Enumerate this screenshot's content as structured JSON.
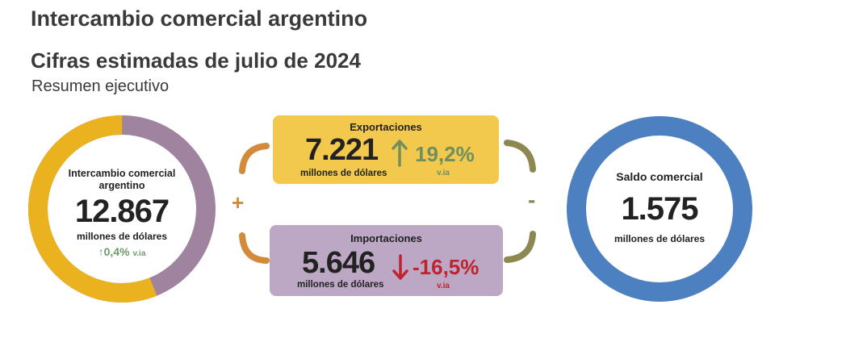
{
  "header": {
    "title": "Intercambio comercial argentino",
    "subtitle_main": "Cifras estimadas de julio de 2024",
    "subtitle_small": "Resumen ejecutivo"
  },
  "total": {
    "label": "Intercambio comercial argentino",
    "value": "12.867",
    "unit": "millones de dólares",
    "change": "0,4%",
    "change_suffix": "v.ia",
    "ring_split_fraction_exports": 0.561
  },
  "exports": {
    "label": "Exportaciones",
    "value": "7.221",
    "unit": "millones de dólares",
    "change": "19,2%",
    "change_suffix": "v.ia",
    "direction": "up"
  },
  "imports": {
    "label": "Importaciones",
    "value": "5.646",
    "unit": "millones de dólares",
    "change": "-16,5%",
    "change_suffix": "v.ia",
    "direction": "down"
  },
  "balance": {
    "label": "Saldo comercial",
    "value": "1.575",
    "unit": "millones de dólares"
  },
  "operators": {
    "plus": "+",
    "minus": "-"
  },
  "colors": {
    "exports": "#f2c94c",
    "exports_ring": "#eab21e",
    "imports": "#bca7c5",
    "imports_ring": "#a0849f",
    "balance": "#4d80c0",
    "increase": "#6f9a6f",
    "decrease": "#c0222e",
    "bracket_left": "#d48a3b",
    "bracket_right": "#8d8752"
  }
}
